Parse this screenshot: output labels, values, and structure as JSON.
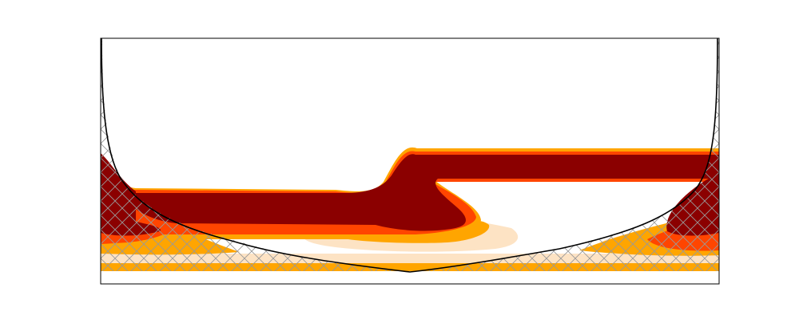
{
  "chart_data": {
    "type": "heatmap",
    "title": "",
    "xlabel": "",
    "ylabel": "",
    "axes_visible": false,
    "grid": false,
    "colorbar": false,
    "levels": [
      "peach",
      "orange",
      "red-orange",
      "dark-red"
    ],
    "colors": {
      "peach": "#fde3c4",
      "orange": "#ffa500",
      "red_orange": "#ff4500",
      "dark_red": "#8b0000",
      "hatch": "#999999",
      "curve": "#000000",
      "frame": "#000000"
    },
    "overlays": [
      "boundary-curve",
      "hatched-region"
    ]
  }
}
